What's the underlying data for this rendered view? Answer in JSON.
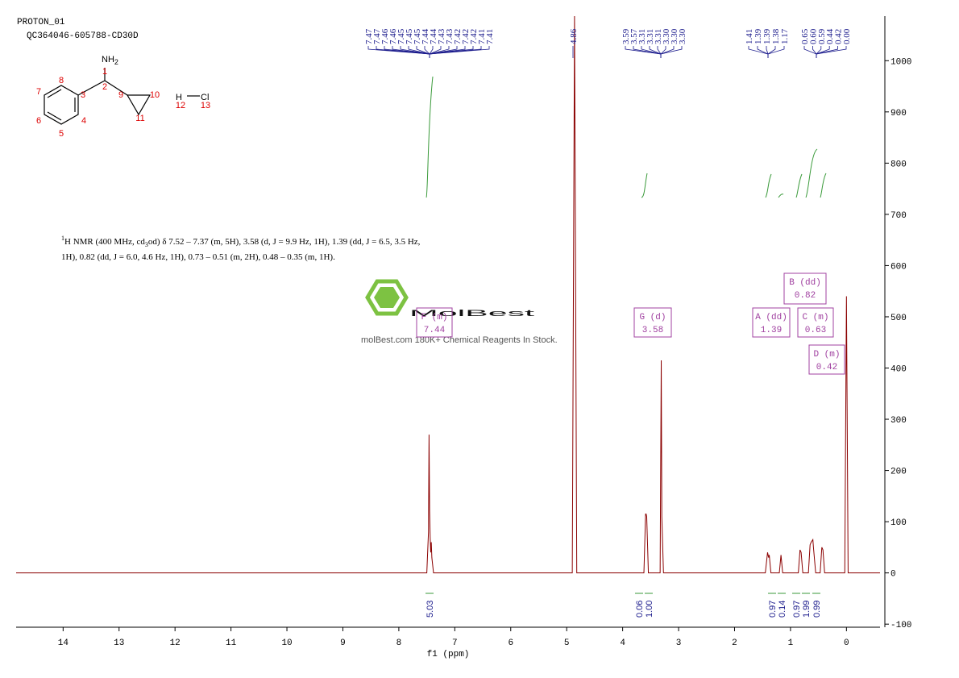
{
  "chart_data": {
    "type": "line",
    "experiment": "PROTON_01",
    "sample": "QC364046-605788-CD30D",
    "xlabel": "f1 (ppm)",
    "x": [
      14.84,
      7.5,
      7.47,
      7.46,
      7.45,
      7.44,
      7.43,
      7.42,
      7.41,
      7.38,
      4.9,
      4.86,
      4.82,
      3.62,
      3.59,
      3.58,
      3.57,
      3.54,
      3.33,
      3.31,
      3.3,
      3.27,
      1.45,
      1.41,
      1.39,
      1.38,
      1.35,
      1.2,
      1.17,
      1.14,
      0.86,
      0.83,
      0.81,
      0.78,
      0.68,
      0.65,
      0.63,
      0.6,
      0.59,
      0.55,
      0.47,
      0.44,
      0.42,
      0.39,
      0.03,
      0.0,
      -0.03,
      -0.6
    ],
    "values": [
      0,
      0,
      80,
      270,
      120,
      70,
      40,
      60,
      30,
      0,
      0,
      1087,
      0,
      0,
      115,
      115,
      110,
      0,
      0,
      415,
      110,
      0,
      0,
      40,
      30,
      35,
      0,
      0,
      35,
      0,
      0,
      45,
      40,
      0,
      0,
      55,
      60,
      65,
      50,
      0,
      0,
      50,
      45,
      0,
      0,
      540,
      0,
      0
    ],
    "color": "#8b0000",
    "xlim": [
      14.84,
      -0.6
    ],
    "xticks": [
      14,
      13,
      12,
      11,
      10,
      9,
      8,
      7,
      6,
      5,
      4,
      3,
      2,
      1,
      0
    ],
    "ylim": [
      -106,
      1087
    ],
    "yticks": [
      -100,
      0,
      100,
      200,
      300,
      400,
      500,
      600,
      700,
      800,
      900,
      1000
    ],
    "grid": false,
    "peak_label_groups": [
      {
        "labels": [
          "7.47",
          "7.47",
          "7.46",
          "7.46",
          "7.45",
          "7.45",
          "7.45",
          "7.44",
          "7.44",
          "7.43",
          "7.43",
          "7.42",
          "7.42",
          "7.42",
          "7.41",
          "7.41"
        ]
      },
      {
        "labels": [
          "4.86"
        ]
      },
      {
        "labels": [
          "3.59",
          "3.57",
          "3.31",
          "3.31",
          "3.31",
          "3.30",
          "3.30",
          "3.30"
        ]
      },
      {
        "labels": [
          "1.41",
          "1.39",
          "1.39",
          "1.38",
          "1.17"
        ]
      },
      {
        "labels": [
          "0.65",
          "0.60",
          "0.59",
          "0.44",
          "0.42",
          "0.00"
        ]
      }
    ],
    "multiplets": [
      {
        "label": "F (m)",
        "shift": "7.44"
      },
      {
        "label": "G (d)",
        "shift": "3.58"
      },
      {
        "label": "A (dd)",
        "shift": "1.39"
      },
      {
        "label": "B (dd)",
        "shift": "0.82"
      },
      {
        "label": "C (m)",
        "shift": "0.63"
      },
      {
        "label": "D (m)",
        "shift": "0.42"
      }
    ],
    "integrals": [
      "5.03",
      "0.06",
      "1.00",
      "0.97",
      "0.14",
      "0.97",
      "1.99",
      "0.99"
    ],
    "description": {
      "sup": "1",
      "line1a": "H NMR (400 MHz, cd",
      "sub": "3",
      "line1b": "od) δ 7.52 – 7.37 (m, 5H), 3.58 (d, J = 9.9 Hz, 1H), 1.39 (dd, J = 6.5, 3.5 Hz,",
      "line2": "1H), 0.82 (dd, J = 6.0, 4.6 Hz, 1H), 0.73 – 0.51 (m, 2H), 0.48 – 0.35 (m, 1H)."
    },
    "structure": {
      "nh": "NH",
      "nh_sub": "2",
      "h": "H",
      "cl": "Cl",
      "numbers": [
        "1",
        "2",
        "3",
        "4",
        "5",
        "6",
        "7",
        "8",
        "9",
        "10",
        "11",
        "12",
        "13"
      ]
    },
    "watermark": {
      "brand": "MolBest",
      "tagline": "molBest.com 180K+ Chemical Reagents In Stock."
    }
  }
}
